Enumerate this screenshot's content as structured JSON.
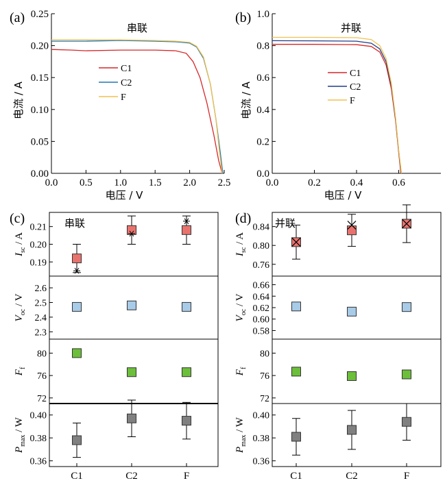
{
  "chart_data": [
    {
      "id": "a",
      "type": "line",
      "panel_label": "(a)",
      "title": "串联",
      "xlabel": "电压 / V",
      "ylabel": "电流 / A",
      "xlim": [
        0,
        2.5
      ],
      "ylim": [
        0,
        0.25
      ],
      "xticks": [
        "0.0",
        "0.5",
        "1.0",
        "1.5",
        "2.0",
        "2.5"
      ],
      "yticks": [
        "0.00",
        "0.05",
        "0.10",
        "0.15",
        "0.20",
        "0.25"
      ],
      "legend_position": "center-right",
      "series": [
        {
          "name": "C1",
          "color": "#d62728",
          "x": [
            0,
            0.3,
            0.5,
            1.0,
            1.5,
            1.8,
            1.95,
            2.05,
            2.15,
            2.25,
            2.35,
            2.42,
            2.47
          ],
          "y": [
            0.194,
            0.193,
            0.192,
            0.193,
            0.193,
            0.192,
            0.188,
            0.175,
            0.15,
            0.11,
            0.06,
            0.02,
            0.0
          ]
        },
        {
          "name": "C2",
          "color": "#1f77b4",
          "x": [
            0,
            0.5,
            1.0,
            1.5,
            1.8,
            2.0,
            2.1,
            2.2,
            2.3,
            2.38,
            2.44,
            2.48
          ],
          "y": [
            0.207,
            0.207,
            0.208,
            0.207,
            0.206,
            0.204,
            0.198,
            0.18,
            0.14,
            0.085,
            0.035,
            0.0
          ]
        },
        {
          "name": "F",
          "color": "#f2c14e",
          "x": [
            0,
            0.5,
            1.0,
            1.5,
            1.8,
            2.0,
            2.1,
            2.2,
            2.3,
            2.38,
            2.43,
            2.47
          ],
          "y": [
            0.209,
            0.209,
            0.209,
            0.208,
            0.207,
            0.205,
            0.199,
            0.182,
            0.14,
            0.085,
            0.035,
            0.0
          ]
        }
      ]
    },
    {
      "id": "b",
      "type": "line",
      "panel_label": "(b)",
      "title": "并联",
      "xlabel": "电压 / V",
      "ylabel": "电流 / A",
      "xlim": [
        0,
        0.8
      ],
      "ylim": [
        0,
        1.0
      ],
      "xticks": [
        "0.0",
        "0.2",
        "0.4",
        "0.6"
      ],
      "yticks": [
        "0.0",
        "0.2",
        "0.4",
        "0.6",
        "0.8",
        "1.0"
      ],
      "legend_position": "center-right",
      "series": [
        {
          "name": "C1",
          "color": "#d62728",
          "x": [
            0,
            0.2,
            0.4,
            0.47,
            0.51,
            0.54,
            0.565,
            0.585,
            0.6,
            0.61
          ],
          "y": [
            0.808,
            0.808,
            0.806,
            0.795,
            0.76,
            0.68,
            0.53,
            0.33,
            0.13,
            0.0
          ]
        },
        {
          "name": "C2",
          "color": "#1f3c88",
          "x": [
            0,
            0.2,
            0.4,
            0.47,
            0.51,
            0.54,
            0.565,
            0.585,
            0.6,
            0.612
          ],
          "y": [
            0.831,
            0.83,
            0.828,
            0.815,
            0.78,
            0.7,
            0.55,
            0.34,
            0.14,
            0.0
          ]
        },
        {
          "name": "F",
          "color": "#f2c14e",
          "x": [
            0,
            0.2,
            0.4,
            0.47,
            0.51,
            0.54,
            0.565,
            0.585,
            0.6,
            0.613
          ],
          "y": [
            0.852,
            0.852,
            0.85,
            0.838,
            0.8,
            0.72,
            0.565,
            0.35,
            0.145,
            0.0
          ]
        }
      ]
    },
    {
      "id": "c",
      "type": "scatter",
      "panel_label": "(c)",
      "title": "串联",
      "categories": [
        "C1",
        "C2",
        "F"
      ],
      "subplots": [
        {
          "ylabel": "Isc / A",
          "ylabel_main": "I",
          "ylabel_sub": "sc",
          "ylabel_unit": " / A",
          "ylim": [
            0.182,
            0.218
          ],
          "yticks": [
            "0.19",
            "0.20",
            "0.21"
          ],
          "ytick_values": [
            0.19,
            0.2,
            0.21
          ],
          "color": "#e8736e",
          "values": [
            0.192,
            0.208,
            0.208
          ],
          "err": [
            0.008,
            0.008,
            0.008
          ],
          "star_values": [
            0.185,
            0.206,
            0.213
          ]
        },
        {
          "ylabel": "Voc / V",
          "ylabel_main": "V",
          "ylabel_sub": "oc",
          "ylabel_unit": " / V",
          "ylim": [
            2.25,
            2.68
          ],
          "yticks": [
            "2.3",
            "2.4",
            "2.5",
            "2.6"
          ],
          "ytick_values": [
            2.3,
            2.4,
            2.5,
            2.6
          ],
          "color": "#a8cbe8",
          "values": [
            2.47,
            2.48,
            2.47
          ]
        },
        {
          "ylabel": "Ff",
          "ylabel_main": "F",
          "ylabel_sub": "f",
          "ylabel_unit": "",
          "ylim": [
            71,
            82.5
          ],
          "yticks": [
            "72",
            "76",
            "80"
          ],
          "ytick_values": [
            72,
            76,
            80
          ],
          "color": "#6cbf3a",
          "values": [
            80.0,
            76.6,
            76.6
          ]
        },
        {
          "ylabel": "Pmax / W",
          "ylabel_main": "P",
          "ylabel_sub": "max",
          "ylabel_unit": " / W",
          "ylim": [
            0.355,
            0.41
          ],
          "yticks": [
            "0.36",
            "0.38",
            "0.40"
          ],
          "ytick_values": [
            0.36,
            0.38,
            0.4
          ],
          "color": "#808080",
          "values": [
            0.378,
            0.397,
            0.395
          ],
          "err": [
            0.015,
            0.016,
            0.016
          ]
        }
      ]
    },
    {
      "id": "d",
      "type": "scatter",
      "panel_label": "(d)",
      "title": "并联",
      "categories": [
        "C1",
        "C2",
        "F"
      ],
      "subplots": [
        {
          "ylabel": "Isc / A",
          "ylabel_main": "I",
          "ylabel_sub": "sc",
          "ylabel_unit": " / A",
          "ylim": [
            0.735,
            0.87
          ],
          "yticks": [
            "0.76",
            "0.80",
            "0.84"
          ],
          "ytick_values": [
            0.76,
            0.8,
            0.84
          ],
          "color": "#e8736e",
          "values": [
            0.807,
            0.832,
            0.846
          ],
          "err": [
            0.036,
            0.034,
            0.04
          ],
          "cross_values": [
            0.807,
            0.843,
            0.846
          ]
        },
        {
          "ylabel": "Voc / V",
          "ylabel_main": "V",
          "ylabel_sub": "oc",
          "ylabel_unit": " / V",
          "ylim": [
            0.565,
            0.675
          ],
          "yticks": [
            "0.58",
            "0.60",
            "0.62",
            "0.64",
            "0.66"
          ],
          "ytick_values": [
            0.58,
            0.6,
            0.62,
            0.64,
            0.66
          ],
          "color": "#a8cbe8",
          "values": [
            0.622,
            0.613,
            0.621
          ]
        },
        {
          "ylabel": "Ff",
          "ylabel_main": "F",
          "ylabel_sub": "f",
          "ylabel_unit": "",
          "ylim": [
            71,
            82.5
          ],
          "yticks": [
            "72",
            "76",
            "80"
          ],
          "ytick_values": [
            72,
            76,
            80
          ],
          "color": "#6cbf3a",
          "values": [
            76.7,
            75.9,
            76.2
          ]
        },
        {
          "ylabel": "Pmax / W",
          "ylabel_main": "P",
          "ylabel_sub": "max",
          "ylabel_unit": " / W",
          "ylim": [
            0.355,
            0.41
          ],
          "yticks": [
            "0.36",
            "0.38",
            "0.40"
          ],
          "ytick_values": [
            0.36,
            0.38,
            0.4
          ],
          "color": "#808080",
          "values": [
            0.381,
            0.387,
            0.394
          ],
          "err": [
            0.016,
            0.017,
            0.016
          ]
        }
      ]
    }
  ]
}
